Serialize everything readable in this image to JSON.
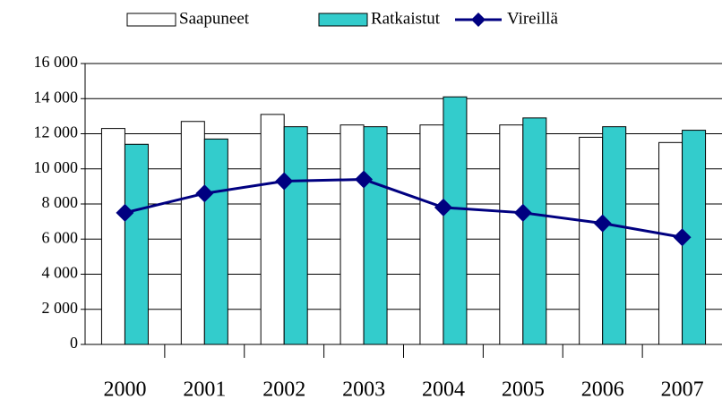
{
  "chart_data": {
    "type": "bar",
    "categories": [
      "2000",
      "2001",
      "2002",
      "2003",
      "2004",
      "2005",
      "2006",
      "2007"
    ],
    "series": [
      {
        "name": "Saapuneet",
        "type": "bar",
        "color": "#ffffff",
        "values": [
          12300,
          12700,
          13100,
          12500,
          12500,
          12500,
          11800,
          11500
        ]
      },
      {
        "name": "Ratkaistut",
        "type": "bar",
        "color": "#33cccc",
        "values": [
          11400,
          11700,
          12400,
          12400,
          14100,
          12900,
          12400,
          12200
        ]
      },
      {
        "name": "Vireillä",
        "type": "line",
        "color": "#000080",
        "values": [
          7500,
          8600,
          9300,
          9400,
          7800,
          7500,
          6900,
          6100
        ]
      }
    ],
    "ylim": [
      0,
      16000
    ],
    "yticks": [
      {
        "value": 0,
        "label": "0"
      },
      {
        "value": 2000,
        "label": "2 000"
      },
      {
        "value": 4000,
        "label": "4 000"
      },
      {
        "value": 6000,
        "label": "6 000"
      },
      {
        "value": 8000,
        "label": "8 000"
      },
      {
        "value": 10000,
        "label": "10 000"
      },
      {
        "value": 12000,
        "label": "12 000"
      },
      {
        "value": 14000,
        "label": "14 000"
      },
      {
        "value": 16000,
        "label": "16 000"
      }
    ],
    "grid": true,
    "legend": "top"
  }
}
